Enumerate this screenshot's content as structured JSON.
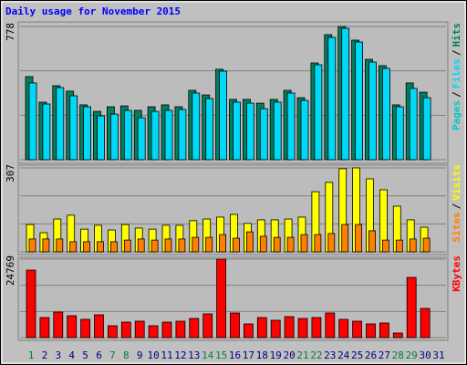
{
  "chart_data": [
    {
      "type": "bar",
      "title": "Daily usage for November 2015",
      "ylim": [
        0,
        778
      ],
      "yticks": [
        778
      ],
      "legend_separator": "/",
      "legend_extra": {
        "name": "Pages",
        "color": "#00c8c8"
      },
      "series": [
        {
          "name": "Hits",
          "color": "#008060",
          "values": [
            485,
            336,
            432,
            400,
            320,
            282,
            309,
            314,
            288,
            309,
            320,
            309,
            405,
            378,
            528,
            352,
            352,
            330,
            352,
            405,
            362,
            565,
            730,
            778,
            698,
            586,
            549,
            320,
            448,
            394,
            null
          ]
        },
        {
          "name": "Files",
          "color": "#00d8f8",
          "values": [
            448,
            325,
            421,
            373,
            309,
            256,
            266,
            288,
            245,
            282,
            288,
            293,
            389,
            357,
            517,
            336,
            330,
            298,
            336,
            389,
            346,
            554,
            714,
            767,
            687,
            570,
            533,
            309,
            416,
            362,
            null
          ]
        }
      ]
    },
    {
      "type": "bar",
      "ylim": [
        0,
        307
      ],
      "yticks": [
        307
      ],
      "legend_separator": "/",
      "series": [
        {
          "name": "Visits",
          "color": "#ffff00",
          "values": [
            100,
            70,
            120,
            134,
            83,
            97,
            80,
            100,
            87,
            83,
            97,
            97,
            114,
            120,
            127,
            137,
            104,
            117,
            117,
            120,
            127,
            220,
            254,
            304,
            307,
            267,
            227,
            167,
            117,
            90,
            null
          ]
        },
        {
          "name": "Sites",
          "color": "#ff8000",
          "values": [
            47,
            47,
            47,
            37,
            37,
            37,
            37,
            43,
            47,
            43,
            47,
            47,
            53,
            53,
            63,
            50,
            73,
            57,
            53,
            53,
            63,
            63,
            67,
            100,
            100,
            77,
            43,
            43,
            47,
            50,
            null
          ]
        }
      ]
    },
    {
      "type": "bar",
      "ylim": [
        0,
        24769
      ],
      "yticks": [
        24769
      ],
      "categories": [
        "1",
        "2",
        "3",
        "4",
        "5",
        "6",
        "7",
        "8",
        "9",
        "10",
        "11",
        "12",
        "13",
        "14",
        "15",
        "16",
        "17",
        "18",
        "19",
        "20",
        "21",
        "22",
        "23",
        "24",
        "25",
        "26",
        "27",
        "28",
        "29",
        "30",
        "31"
      ],
      "category_colors": [
        "#008040",
        "#000080",
        "#000080",
        "#000080",
        "#000080",
        "#000080",
        "#008040",
        "#008040",
        "#000080",
        "#000080",
        "#000080",
        "#000080",
        "#000080",
        "#008040",
        "#008040",
        "#000080",
        "#000080",
        "#000080",
        "#000080",
        "#000080",
        "#008040",
        "#008040",
        "#000080",
        "#000080",
        "#000080",
        "#000080",
        "#000080",
        "#008040",
        "#008040",
        "#000080",
        "#000080"
      ],
      "series": [
        {
          "name": "KBytes",
          "color": "#ff0000",
          "values": [
            21313,
            6336,
            8064,
            6912,
            5760,
            7200,
            3744,
            4896,
            5184,
            3744,
            4896,
            5184,
            6048,
            7488,
            24769,
            7776,
            4320,
            6336,
            5472,
            6624,
            6048,
            6336,
            7776,
            5760,
            5184,
            4320,
            4608,
            1440,
            19008,
            9216,
            null
          ]
        }
      ]
    }
  ]
}
